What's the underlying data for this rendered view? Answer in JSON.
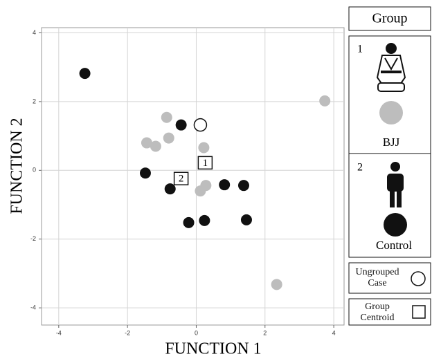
{
  "chart_data": {
    "type": "scatter",
    "x_label": "FUNCTION 1",
    "y_label": "FUNCTION 2",
    "legend_title": "Group",
    "xlim": [
      -4.5,
      4.3
    ],
    "ylim": [
      -4.5,
      4.15
    ],
    "xticks": [
      -4,
      -2,
      0,
      2,
      4
    ],
    "yticks": [
      -4,
      -2,
      0,
      2,
      4
    ],
    "grid": true,
    "series": [
      {
        "group": "1",
        "name": "BJJ",
        "color": "#bdbdbd",
        "x": [
          -0.86,
          -1.44,
          -1.18,
          -0.8,
          0.22,
          0.28,
          0.12,
          3.74,
          2.34
        ],
        "values": [
          1.54,
          0.8,
          0.7,
          0.94,
          0.66,
          -0.44,
          -0.6,
          2.02,
          -3.32
        ]
      },
      {
        "group": "2",
        "name": "Control",
        "color": "#111111",
        "x": [
          -3.24,
          -0.44,
          -1.48,
          -0.76,
          -0.22,
          0.24,
          0.82,
          1.38,
          1.46
        ],
        "values": [
          2.82,
          1.32,
          -0.08,
          -0.54,
          -1.52,
          -1.46,
          -0.42,
          -0.44,
          -1.44
        ]
      }
    ],
    "ungrouped": {
      "name": "Ungrouped Case",
      "x": [
        0.12
      ],
      "values": [
        1.32
      ]
    },
    "centroids": {
      "name": "Group Centroid",
      "points": [
        {
          "label": "1",
          "x": 0.26,
          "y": 0.2
        },
        {
          "label": "2",
          "x": -0.44,
          "y": -0.26
        }
      ]
    }
  }
}
